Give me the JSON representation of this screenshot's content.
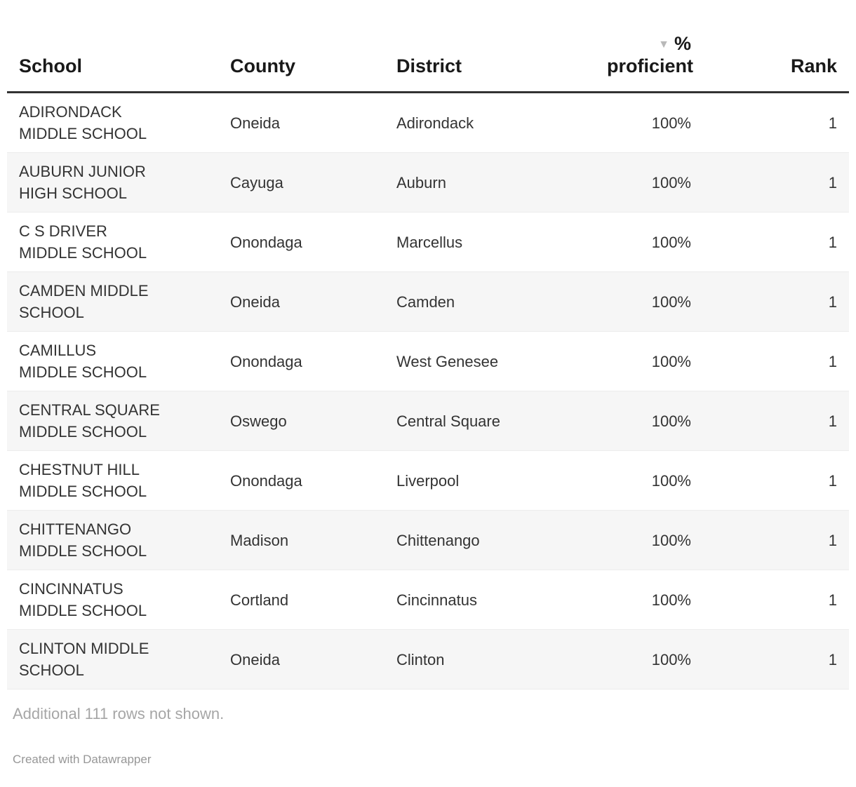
{
  "chart_data": {
    "type": "table",
    "columns": [
      {
        "id": "school",
        "label": "School",
        "align": "left"
      },
      {
        "id": "county",
        "label": "County",
        "align": "left"
      },
      {
        "id": "district",
        "label": "District",
        "align": "left"
      },
      {
        "id": "proficient",
        "label": "% proficient",
        "label_line1": "%",
        "label_line2": "proficient",
        "align": "right",
        "sort": "descending"
      },
      {
        "id": "rank",
        "label": "Rank",
        "align": "right"
      }
    ],
    "rows": [
      {
        "school": "ADIRONDACK\nMIDDLE SCHOOL",
        "county": "Oneida",
        "district": "Adirondack",
        "proficient": "100%",
        "rank": "1"
      },
      {
        "school": "AUBURN JUNIOR\nHIGH SCHOOL",
        "county": "Cayuga",
        "district": "Auburn",
        "proficient": "100%",
        "rank": "1"
      },
      {
        "school": "C S DRIVER\nMIDDLE SCHOOL",
        "county": "Onondaga",
        "district": "Marcellus",
        "proficient": "100%",
        "rank": "1"
      },
      {
        "school": "CAMDEN MIDDLE\nSCHOOL",
        "county": "Oneida",
        "district": "Camden",
        "proficient": "100%",
        "rank": "1"
      },
      {
        "school": "CAMILLUS\nMIDDLE SCHOOL",
        "county": "Onondaga",
        "district": "West Genesee",
        "proficient": "100%",
        "rank": "1"
      },
      {
        "school": "CENTRAL SQUARE\nMIDDLE SCHOOL",
        "county": "Oswego",
        "district": "Central Square",
        "proficient": "100%",
        "rank": "1"
      },
      {
        "school": "CHESTNUT HILL\nMIDDLE SCHOOL",
        "county": "Onondaga",
        "district": "Liverpool",
        "proficient": "100%",
        "rank": "1"
      },
      {
        "school": "CHITTENANGO\nMIDDLE SCHOOL",
        "county": "Madison",
        "district": "Chittenango",
        "proficient": "100%",
        "rank": "1"
      },
      {
        "school": "CINCINNATUS\nMIDDLE SCHOOL",
        "county": "Cortland",
        "district": "Cincinnatus",
        "proficient": "100%",
        "rank": "1"
      },
      {
        "school": "CLINTON MIDDLE\nSCHOOL",
        "county": "Oneida",
        "district": "Clinton",
        "proficient": "100%",
        "rank": "1"
      }
    ]
  },
  "sort_indicator": {
    "icon": "▼",
    "column": "% proficient",
    "direction": "descending"
  },
  "footer": {
    "note": "Additional 111 rows not shown.",
    "attribution": "Created with Datawrapper"
  },
  "colors": {
    "header_text": "#191919",
    "header_rule": "#323232",
    "body_text": "#333333",
    "stripe": "#f6f6f6",
    "row_border": "#ececec",
    "sort_icon": "#b9b9b9",
    "muted_text": "#a6a6a6",
    "attribution_text": "#979797"
  }
}
